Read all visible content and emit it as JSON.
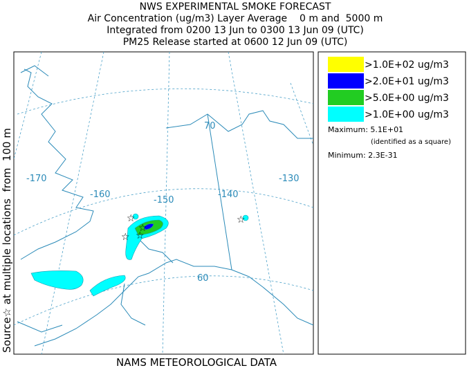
{
  "header": {
    "lines": [
      "NWS EXPERIMENTAL SMOKE FORECAST",
      "Air Concentration (ug/m3) Layer Average    0 m and  5000 m",
      "Integrated from 0200 13 Jun to 0300 13 Jun 09 (UTC)",
      "PM25 Release started at 0600 12 Jun 09 (UTC)"
    ]
  },
  "side_label": "Source☆ at multiple locations  from  100 m",
  "footer": "NAMS METEOROLOGICAL DATA",
  "map": {
    "graticule_labels": [
      "-170",
      "-160",
      "-150",
      "-140",
      "-130",
      "70",
      "60"
    ]
  },
  "legend": {
    "items": [
      {
        "label": ">1.0E+02 ug/m3",
        "color": "#ffff00"
      },
      {
        "label": ">2.0E+01 ug/m3",
        "color": "#0000ff"
      },
      {
        "label": ">5.0E+00 ug/m3",
        "color": "#22cc22"
      },
      {
        "label": ">1.0E+00 ug/m3",
        "color": "#00ffff"
      }
    ],
    "maximum": "Maximum: 5.1E+01",
    "maximum_note": "(identified as a square)",
    "minimum": "Minimum: 2.3E-31"
  }
}
